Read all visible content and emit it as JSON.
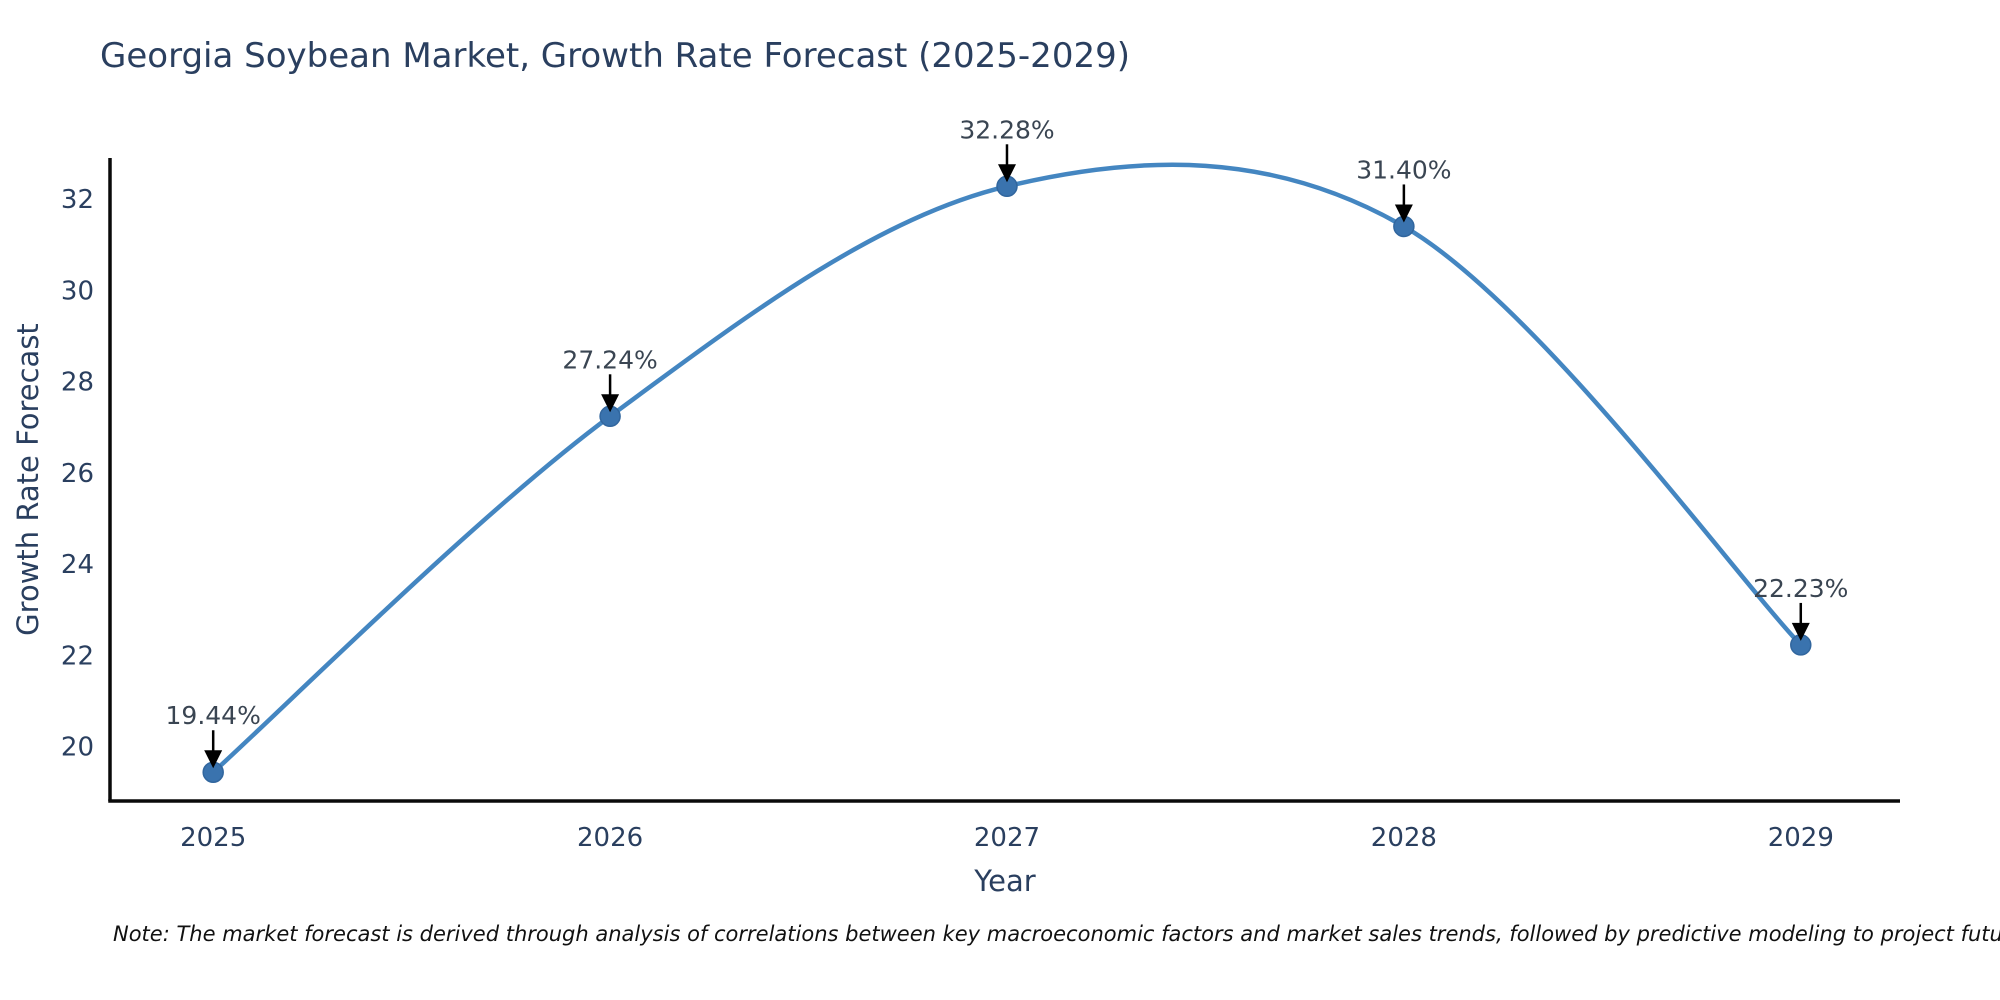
{
  "note": "Note: The market forecast is derived through analysis of correlations between key macroeconomic factors and market sales trends, followed by predictive modeling to project future sales",
  "chart_data": {
    "type": "line",
    "title": "Georgia Soybean Market, Growth Rate Forecast (2025-2029)",
    "x": [
      2025,
      2026,
      2027,
      2028,
      2029
    ],
    "values": [
      19.44,
      27.24,
      32.28,
      31.4,
      22.23
    ],
    "point_labels": [
      "19.44%",
      "27.24%",
      "32.28%",
      "31.40%",
      "22.23%"
    ],
    "xlabel": "Year",
    "ylabel": "Growth Rate Forecast",
    "yticks": [
      20,
      22,
      24,
      26,
      28,
      30,
      32
    ],
    "xticks": [
      2025,
      2026,
      2027,
      2028,
      2029
    ],
    "xlim": [
      2024.74,
      2029.25
    ],
    "ylim": [
      18.81,
      32.9
    ],
    "line_shape": "spline",
    "grid": false,
    "legend": "none",
    "colors": {
      "line": "#4486c1",
      "marker": "#3a73ae",
      "marker_edge": "#31669e",
      "axis": "#0a0a0a",
      "text": "#2a3f5f",
      "annotation_text": "#3a4552",
      "arrow": "#000000",
      "background": "#ffffff"
    }
  }
}
